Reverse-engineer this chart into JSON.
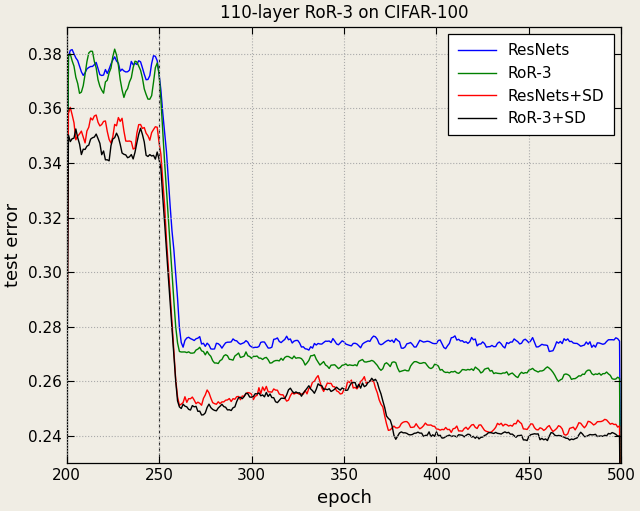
{
  "title": "110-layer RoR-3 on CIFAR-100",
  "xlabel": "epoch",
  "ylabel": "test error",
  "xlim": [
    200,
    500
  ],
  "ylim": [
    0.23,
    0.39
  ],
  "yticks": [
    0.24,
    0.26,
    0.28,
    0.3,
    0.32,
    0.34,
    0.36,
    0.38
  ],
  "xticks": [
    200,
    250,
    300,
    350,
    400,
    450,
    500
  ],
  "colors": {
    "ResNets": "#0000ff",
    "RoR-3": "#008000",
    "ResNets+SD": "#ff0000",
    "RoR-3+SD": "#000000"
  },
  "legend_labels": [
    "ResNets",
    "RoR-3",
    "ResNets+SD",
    "RoR-3+SD"
  ],
  "figsize": [
    6.4,
    5.11
  ],
  "dpi": 100,
  "background_color": "#f0ede4",
  "grid_color": "#aaaaaa",
  "grid_linestyle": ":",
  "seed": 42,
  "vline_x": 250,
  "linewidth": 1.0
}
